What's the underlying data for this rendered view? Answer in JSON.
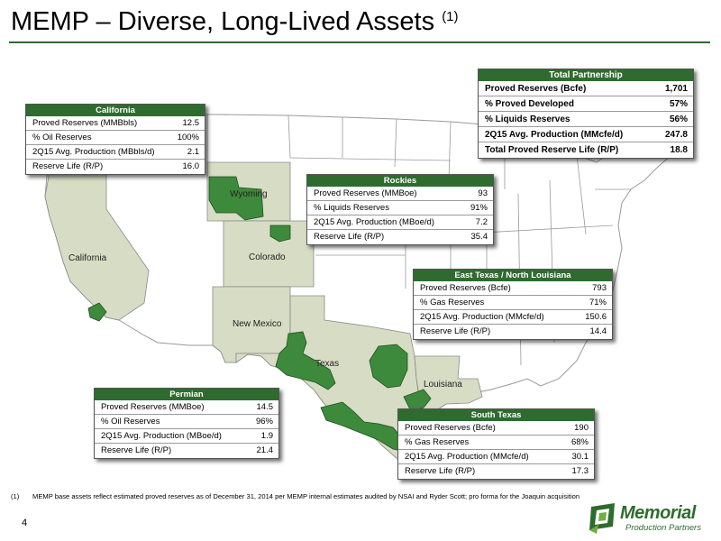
{
  "title": {
    "text": "MEMP – Diverse, Long-Lived Assets",
    "sup": "(1)"
  },
  "colors": {
    "accent": "#2f6b2f",
    "asset_fill": "#3d8a3d",
    "state_fill": "#d7dcc4"
  },
  "state_labels": {
    "california": "California",
    "wyoming": "Wyoming",
    "colorado": "Colorado",
    "new_mexico": "New Mexico",
    "texas": "Texas",
    "louisiana": "Louisiana"
  },
  "boxes": {
    "total": {
      "title": "Total Partnership",
      "rows": [
        {
          "label": "Proved Reserves (Bcfe)",
          "value": "1,701"
        },
        {
          "label": "% Proved Developed",
          "value": "57%"
        },
        {
          "label": "% Liquids Reserves",
          "value": "56%"
        },
        {
          "label": "2Q15 Avg. Production (MMcfe/d)",
          "value": "247.8"
        },
        {
          "label": "Total Proved Reserve Life (R/P)",
          "value": "18.8"
        }
      ]
    },
    "california": {
      "title": "California",
      "rows": [
        {
          "label": "Proved Reserves (MMBbls)",
          "value": "12.5"
        },
        {
          "label": "% Oil Reserves",
          "value": "100%"
        },
        {
          "label": "2Q15 Avg. Production (MBbls/d)",
          "value": "2.1"
        },
        {
          "label": "Reserve Life (R/P)",
          "value": "16.0"
        }
      ]
    },
    "rockies": {
      "title": "Rockies",
      "rows": [
        {
          "label": "Proved Reserves (MMBoe)",
          "value": "93"
        },
        {
          "label": "% Liquids Reserves",
          "value": "91%"
        },
        {
          "label": "2Q15 Avg. Production (MBoe/d)",
          "value": "7.2"
        },
        {
          "label": "Reserve Life (R/P)",
          "value": "35.4"
        }
      ]
    },
    "east_texas": {
      "title": "East Texas / North Louisiana",
      "rows": [
        {
          "label": "Proved Reserves (Bcfe)",
          "value": "793"
        },
        {
          "label": "% Gas Reserves",
          "value": "71%"
        },
        {
          "label": "2Q15 Avg. Production (MMcfe/d)",
          "value": "150.6"
        },
        {
          "label": "Reserve Life (R/P)",
          "value": "14.4"
        }
      ]
    },
    "permian": {
      "title": "Permian",
      "rows": [
        {
          "label": "Proved Reserves (MMBoe)",
          "value": "14.5"
        },
        {
          "label": "% Oil Reserves",
          "value": "96%"
        },
        {
          "label": "2Q15 Avg. Production (MBoe/d)",
          "value": "1.9"
        },
        {
          "label": "Reserve Life (R/P)",
          "value": "21.4"
        }
      ]
    },
    "south_texas": {
      "title": "South Texas",
      "rows": [
        {
          "label": "Proved Reserves (Bcfe)",
          "value": "190"
        },
        {
          "label": "% Gas Reserves",
          "value": "68%"
        },
        {
          "label": "2Q15 Avg. Production (MMcfe/d)",
          "value": "30.1"
        },
        {
          "label": "Reserve Life (R/P)",
          "value": "17.3"
        }
      ]
    }
  },
  "footnote": {
    "number": "(1)",
    "text": "MEMP base assets reflect estimated proved reserves as of December 31, 2014 per MEMP internal estimates audited by NSAI and Ryder Scott; pro forma for the Joaquin acquisition"
  },
  "page_number": "4",
  "logo": {
    "name": "Memorial",
    "subtitle": "Production Partners"
  }
}
